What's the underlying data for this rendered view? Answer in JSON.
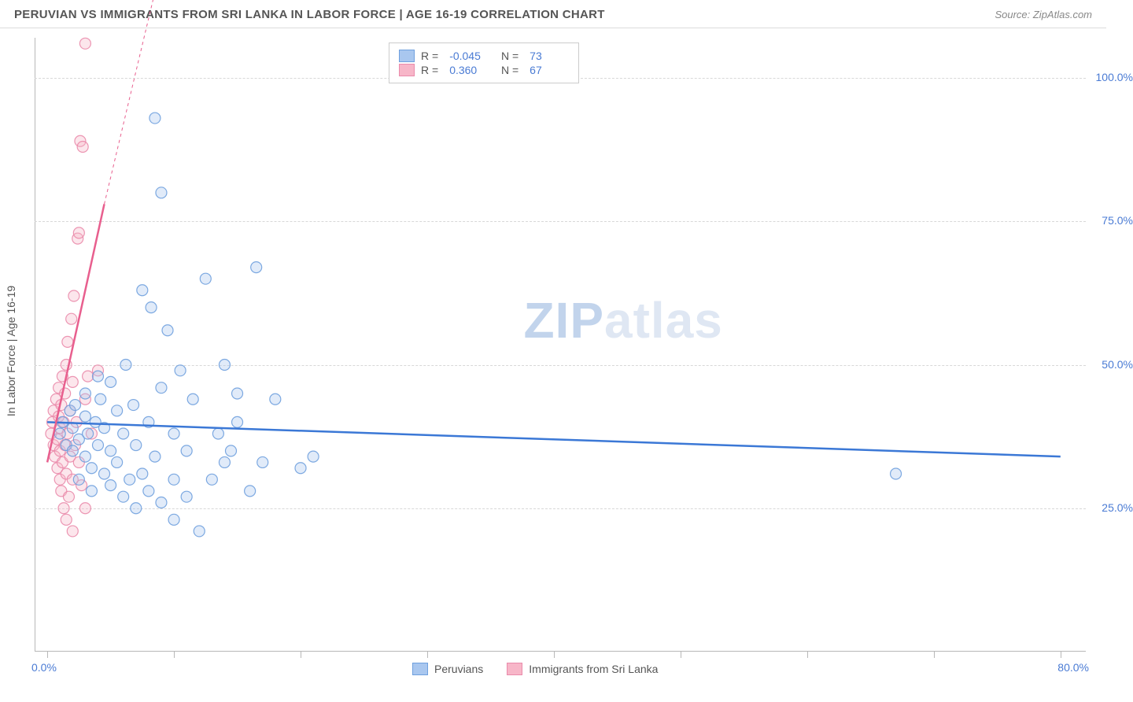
{
  "header": {
    "title": "PERUVIAN VS IMMIGRANTS FROM SRI LANKA IN LABOR FORCE | AGE 16-19 CORRELATION CHART",
    "source": "Source: ZipAtlas.com"
  },
  "watermark": {
    "zip": "ZIP",
    "atlas": "atlas"
  },
  "chart": {
    "type": "scatter",
    "background_color": "#ffffff",
    "grid_color": "#d8d8d8",
    "axis_color": "#b8b8b8",
    "tick_label_color": "#4a7bd4",
    "axis_label_color": "#555555",
    "y_axis": {
      "label": "In Labor Force | Age 16-19",
      "min": 0,
      "max": 107,
      "grid_lines": [
        25,
        50,
        75,
        100
      ],
      "tick_labels": [
        "25.0%",
        "50.0%",
        "75.0%",
        "100.0%"
      ]
    },
    "x_axis": {
      "min": -1,
      "max": 82,
      "tick_positions": [
        0,
        10,
        20,
        30,
        40,
        50,
        60,
        70,
        80
      ],
      "min_label": "0.0%",
      "max_label": "80.0%"
    },
    "marker_radius": 7,
    "line_width": 2.5,
    "series": [
      {
        "name": "Peruvians",
        "color_fill": "#a9c7ef",
        "color_stroke": "#6fa0de",
        "line_color": "#3b78d6",
        "R": "-0.045",
        "N": "73",
        "trend": {
          "x1": 0,
          "y1": 40,
          "x2": 80,
          "y2": 34
        },
        "points": [
          [
            1,
            38
          ],
          [
            1.2,
            40
          ],
          [
            1.5,
            36
          ],
          [
            1.8,
            42
          ],
          [
            2,
            35
          ],
          [
            2,
            39
          ],
          [
            2.2,
            43
          ],
          [
            2.5,
            37
          ],
          [
            2.5,
            30
          ],
          [
            3,
            41
          ],
          [
            3,
            34
          ],
          [
            3,
            45
          ],
          [
            3.2,
            38
          ],
          [
            3.5,
            32
          ],
          [
            3.5,
            28
          ],
          [
            3.8,
            40
          ],
          [
            4,
            36
          ],
          [
            4,
            48
          ],
          [
            4.2,
            44
          ],
          [
            4.5,
            31
          ],
          [
            4.5,
            39
          ],
          [
            5,
            35
          ],
          [
            5,
            29
          ],
          [
            5,
            47
          ],
          [
            5.5,
            42
          ],
          [
            5.5,
            33
          ],
          [
            6,
            27
          ],
          [
            6,
            38
          ],
          [
            6.2,
            50
          ],
          [
            6.5,
            30
          ],
          [
            6.8,
            43
          ],
          [
            7,
            36
          ],
          [
            7,
            25
          ],
          [
            7.5,
            31
          ],
          [
            7.5,
            63
          ],
          [
            8,
            28
          ],
          [
            8,
            40
          ],
          [
            8.2,
            60
          ],
          [
            8.5,
            34
          ],
          [
            8.5,
            93
          ],
          [
            9,
            26
          ],
          [
            9,
            46
          ],
          [
            9,
            80
          ],
          [
            9.5,
            56
          ],
          [
            10,
            30
          ],
          [
            10,
            38
          ],
          [
            10,
            23
          ],
          [
            10.5,
            49
          ],
          [
            11,
            35
          ],
          [
            11,
            27
          ],
          [
            11.5,
            44
          ],
          [
            12,
            21
          ],
          [
            12.5,
            65
          ],
          [
            13,
            30
          ],
          [
            13.5,
            38
          ],
          [
            14,
            33
          ],
          [
            14,
            50
          ],
          [
            14.5,
            35
          ],
          [
            15,
            40
          ],
          [
            15,
            45
          ],
          [
            16,
            28
          ],
          [
            16.5,
            67
          ],
          [
            17,
            33
          ],
          [
            18,
            44
          ],
          [
            20,
            32
          ],
          [
            21,
            34
          ],
          [
            67,
            31
          ]
        ]
      },
      {
        "name": "Immigrants from Sri Lanka",
        "color_fill": "#f7b6c8",
        "color_stroke": "#ea8bab",
        "line_color": "#e85f8e",
        "R": "0.360",
        "N": "67",
        "trend": {
          "x1": 0,
          "y1": 33,
          "x2": 4.5,
          "y2": 78
        },
        "trend_dashed_extension": {
          "x1": 4.5,
          "y1": 78,
          "x2": 8.5,
          "y2": 115
        },
        "points": [
          [
            0.3,
            38
          ],
          [
            0.4,
            40
          ],
          [
            0.5,
            36
          ],
          [
            0.5,
            42
          ],
          [
            0.6,
            34
          ],
          [
            0.7,
            44
          ],
          [
            0.8,
            37
          ],
          [
            0.8,
            32
          ],
          [
            0.9,
            41
          ],
          [
            0.9,
            46
          ],
          [
            1,
            35
          ],
          [
            1,
            39
          ],
          [
            1,
            30
          ],
          [
            1.1,
            43
          ],
          [
            1.1,
            28
          ],
          [
            1.2,
            48
          ],
          [
            1.2,
            33
          ],
          [
            1.3,
            40
          ],
          [
            1.3,
            25
          ],
          [
            1.4,
            45
          ],
          [
            1.4,
            36
          ],
          [
            1.5,
            50
          ],
          [
            1.5,
            31
          ],
          [
            1.5,
            23
          ],
          [
            1.6,
            38
          ],
          [
            1.6,
            54
          ],
          [
            1.7,
            27
          ],
          [
            1.8,
            42
          ],
          [
            1.8,
            34
          ],
          [
            1.9,
            58
          ],
          [
            2,
            30
          ],
          [
            2,
            47
          ],
          [
            2,
            21
          ],
          [
            2.1,
            62
          ],
          [
            2.2,
            36
          ],
          [
            2.3,
            40
          ],
          [
            2.4,
            72
          ],
          [
            2.5,
            33
          ],
          [
            2.5,
            73
          ],
          [
            2.6,
            89
          ],
          [
            2.7,
            29
          ],
          [
            2.8,
            88
          ],
          [
            3,
            44
          ],
          [
            3,
            106
          ],
          [
            3,
            25
          ],
          [
            3.2,
            48
          ],
          [
            3.5,
            38
          ],
          [
            4,
            49
          ]
        ]
      }
    ]
  },
  "legend_bottom": {
    "items": [
      {
        "label": "Peruvians",
        "fill": "#a9c7ef",
        "stroke": "#6fa0de"
      },
      {
        "label": "Immigrants from Sri Lanka",
        "fill": "#f7b6c8",
        "stroke": "#ea8bab"
      }
    ]
  }
}
